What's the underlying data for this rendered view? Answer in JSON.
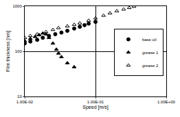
{
  "chart_data": {
    "type": "scatter",
    "x_label": "Speed [m/s]",
    "y_label": "Film thickness [nm]",
    "log": true,
    "grid": true,
    "legend": "upper right",
    "xlim": [
      0.01,
      1
    ],
    "xticks": [
      {
        "value": 0.01,
        "label": "1.00E-02"
      },
      {
        "value": 0.1,
        "label": "1.00E-01"
      },
      {
        "value": 1,
        "label": "1.00E+00"
      }
    ],
    "ylim": [
      10,
      1000
    ],
    "yticks": [
      10,
      100,
      1000
    ],
    "series": [
      {
        "name": "base oil",
        "color": "#000000",
        "marker": "circle",
        "x": [
          0.01,
          0.012,
          0.015,
          0.018,
          0.022,
          0.027,
          0.033,
          0.04,
          0.05,
          0.06,
          0.07,
          0.08,
          0.1
        ],
        "values": [
          150,
          165,
          180,
          200,
          220,
          240,
          260,
          285,
          320,
          350,
          380,
          410,
          450
        ]
      },
      {
        "name": "grease 1",
        "color": "#000000",
        "marker": "triangle",
        "x": [
          0.01,
          0.012,
          0.014,
          0.016,
          0.018,
          0.02,
          0.022,
          0.025,
          0.028,
          0.03,
          0.033,
          0.04,
          0.05
        ],
        "values": [
          170,
          190,
          210,
          230,
          250,
          240,
          200,
          150,
          110,
          90,
          75,
          55,
          45
        ]
      },
      {
        "name": "grease 2",
        "color": "#000000",
        "marker": "triangle-open",
        "x": [
          0.01,
          0.012,
          0.015,
          0.02,
          0.025,
          0.03,
          0.04,
          0.05,
          0.06,
          0.08,
          0.1,
          0.13,
          0.16,
          0.2,
          0.25,
          0.3,
          0.35
        ],
        "values": [
          200,
          220,
          240,
          270,
          300,
          330,
          360,
          390,
          420,
          480,
          540,
          620,
          700,
          780,
          850,
          920,
          980
        ]
      }
    ]
  }
}
